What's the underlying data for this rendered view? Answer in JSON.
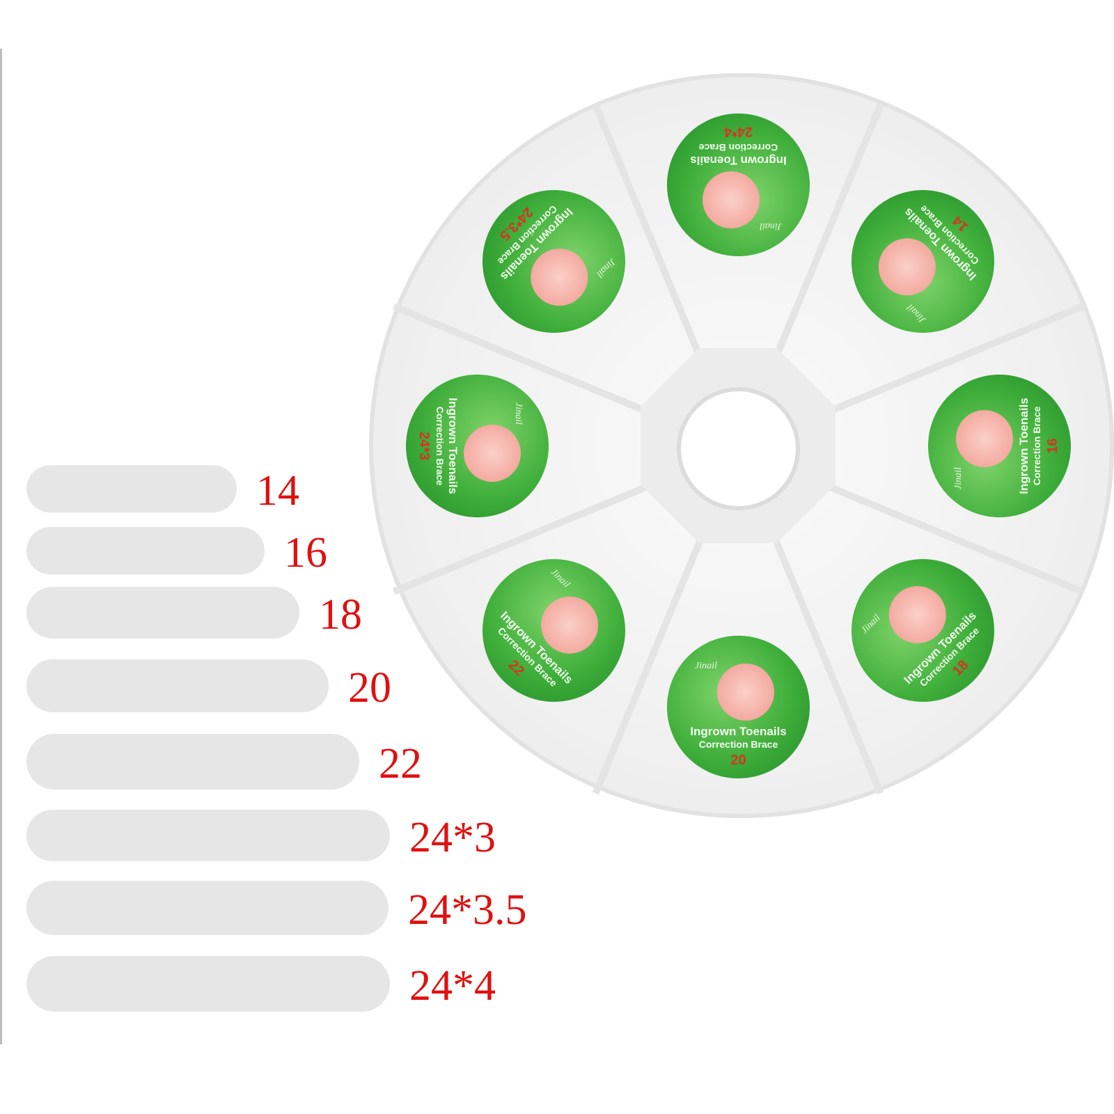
{
  "product": {
    "brand": "Jinail",
    "sticker_line1": "Ingrown Toenails",
    "sticker_line2": "Correction Brace",
    "colors": {
      "label_red": "#e01010",
      "sticker_green": "#3fae3a",
      "bar_gray": "#e6e6e6"
    },
    "compartments": [
      {
        "size": "24*4",
        "angle": 180
      },
      {
        "size": "14",
        "angle": -135
      },
      {
        "size": "16",
        "angle": -90
      },
      {
        "size": "18",
        "angle": -45
      },
      {
        "size": "20",
        "angle": 0
      },
      {
        "size": "22",
        "angle": 45
      },
      {
        "size": "24*3",
        "angle": 90
      },
      {
        "size": "24*3.5",
        "angle": 135
      }
    ]
  },
  "size_chart": [
    {
      "label": "14"
    },
    {
      "label": "16"
    },
    {
      "label": "18"
    },
    {
      "label": "20"
    },
    {
      "label": "22"
    },
    {
      "label": "24*3"
    },
    {
      "label": "24*3.5"
    },
    {
      "label": "24*4"
    }
  ]
}
